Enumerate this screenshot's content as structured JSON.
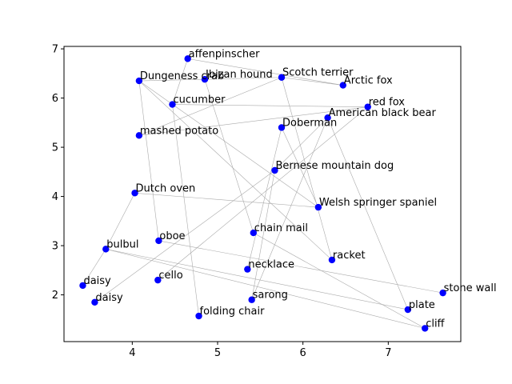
{
  "chart_data": {
    "type": "scatter",
    "title": "",
    "xlabel": "",
    "ylabel": "",
    "xlim": [
      3.2,
      7.85
    ],
    "ylim": [
      1.05,
      7.05
    ],
    "grid": false,
    "x_ticks": [
      4,
      5,
      6,
      7
    ],
    "y_ticks": [
      2,
      3,
      4,
      5,
      6,
      7
    ],
    "marker_color": "#0000ff",
    "edge_color": "#aaaaaa",
    "points": [
      {
        "label": "affenpinscher",
        "x": 4.65,
        "y": 6.8
      },
      {
        "label": "Ibizan hound",
        "x": 4.85,
        "y": 6.38
      },
      {
        "label": "Scotch terrier",
        "x": 5.75,
        "y": 6.42
      },
      {
        "label": "Dungeness crab",
        "x": 4.08,
        "y": 6.35
      },
      {
        "label": "Arctic fox",
        "x": 6.47,
        "y": 6.26
      },
      {
        "label": "cucumber",
        "x": 4.47,
        "y": 5.87
      },
      {
        "label": "red fox",
        "x": 6.76,
        "y": 5.82
      },
      {
        "label": "American black bear",
        "x": 6.29,
        "y": 5.6
      },
      {
        "label": "Doberman",
        "x": 5.75,
        "y": 5.4
      },
      {
        "label": "mashed potato",
        "x": 4.08,
        "y": 5.24
      },
      {
        "label": "Bernese mountain dog",
        "x": 5.67,
        "y": 4.53
      },
      {
        "label": "Dutch oven",
        "x": 4.03,
        "y": 4.07
      },
      {
        "label": "Welsh springer spaniel",
        "x": 6.18,
        "y": 3.78
      },
      {
        "label": "chain mail",
        "x": 5.42,
        "y": 3.26
      },
      {
        "label": "oboe",
        "x": 4.31,
        "y": 3.1
      },
      {
        "label": "bulbul",
        "x": 3.69,
        "y": 2.93
      },
      {
        "label": "racket",
        "x": 6.34,
        "y": 2.71
      },
      {
        "label": "necklace",
        "x": 5.35,
        "y": 2.52
      },
      {
        "label": "cello",
        "x": 4.3,
        "y": 2.3
      },
      {
        "label": "daisy",
        "x": 3.42,
        "y": 2.19
      },
      {
        "label": "stone wall",
        "x": 7.64,
        "y": 2.04
      },
      {
        "label": "sarong",
        "x": 5.4,
        "y": 1.9
      },
      {
        "label": "daisy",
        "x": 3.56,
        "y": 1.85
      },
      {
        "label": "plate",
        "x": 7.23,
        "y": 1.7
      },
      {
        "label": "folding chair",
        "x": 4.78,
        "y": 1.57
      },
      {
        "label": "cliff",
        "x": 7.43,
        "y": 1.32
      }
    ],
    "edges": [
      [
        0,
        4
      ],
      [
        0,
        5
      ],
      [
        1,
        2
      ],
      [
        1,
        3
      ],
      [
        1,
        13
      ],
      [
        2,
        4
      ],
      [
        2,
        16
      ],
      [
        3,
        16
      ],
      [
        3,
        14
      ],
      [
        3,
        12
      ],
      [
        5,
        24
      ],
      [
        5,
        6
      ],
      [
        6,
        9
      ],
      [
        6,
        18
      ],
      [
        7,
        23
      ],
      [
        7,
        10
      ],
      [
        7,
        21
      ],
      [
        8,
        17
      ],
      [
        8,
        12
      ],
      [
        9,
        2
      ],
      [
        10,
        22
      ],
      [
        10,
        21
      ],
      [
        11,
        12
      ],
      [
        11,
        15
      ],
      [
        15,
        19
      ],
      [
        15,
        23
      ],
      [
        15,
        25
      ],
      [
        14,
        20
      ],
      [
        13,
        25
      ]
    ]
  }
}
